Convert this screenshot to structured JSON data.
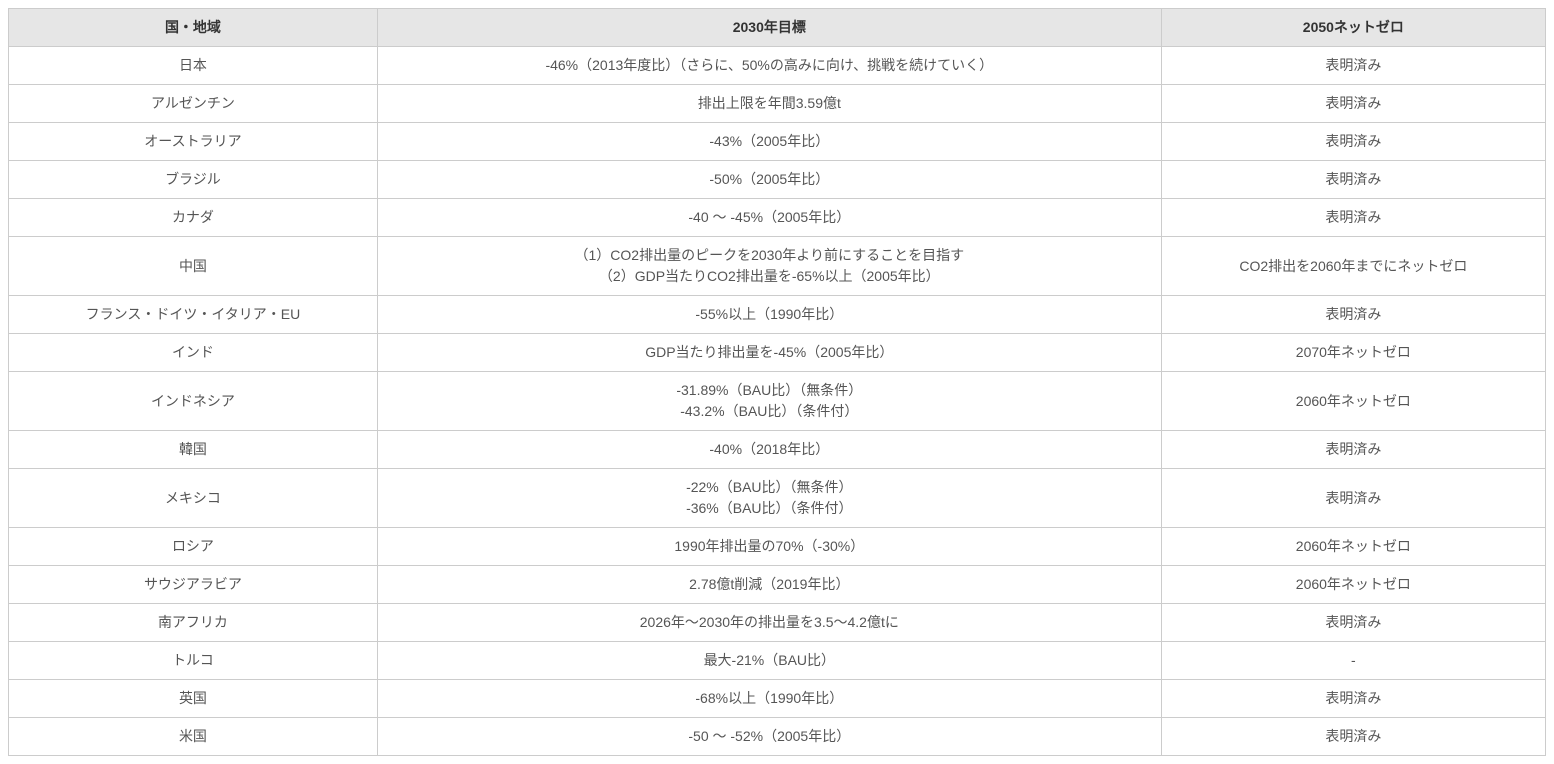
{
  "table": {
    "columns": [
      "国・地域",
      "2030年目標",
      "2050ネットゼロ"
    ],
    "rows": [
      {
        "region": "日本",
        "target": "-46%（2013年度比）（さらに、50%の高みに向け、挑戦を続けていく）",
        "netzero": "表明済み"
      },
      {
        "region": "アルゼンチン",
        "target": "排出上限を年間3.59億t",
        "netzero": "表明済み"
      },
      {
        "region": "オーストラリア",
        "target": "-43%（2005年比）",
        "netzero": "表明済み"
      },
      {
        "region": "ブラジル",
        "target": "-50%（2005年比）",
        "netzero": "表明済み"
      },
      {
        "region": "カナダ",
        "target": "-40 ～ -45%（2005年比）",
        "netzero": "表明済み"
      },
      {
        "region": "中国",
        "target": "（1）CO2排出量のピークを2030年より前にすることを目指す\n（2）GDP当たりCO2排出量を-65%以上（2005年比）",
        "netzero": "CO2排出を2060年までにネットゼロ"
      },
      {
        "region": "フランス・ドイツ・イタリア・EU",
        "target": "-55%以上（1990年比）",
        "netzero": "表明済み"
      },
      {
        "region": "インド",
        "target": "GDP当たり排出量を-45%（2005年比）",
        "netzero": "2070年ネットゼロ"
      },
      {
        "region": "インドネシア",
        "target": "-31.89%（BAU比）（無条件）\n-43.2%（BAU比）（条件付）",
        "netzero": "2060年ネットゼロ"
      },
      {
        "region": "韓国",
        "target": "-40%（2018年比）",
        "netzero": "表明済み"
      },
      {
        "region": "メキシコ",
        "target": "-22%（BAU比）（無条件）\n-36%（BAU比）（条件付）",
        "netzero": "表明済み"
      },
      {
        "region": "ロシア",
        "target": "1990年排出量の70%（-30%）",
        "netzero": "2060年ネットゼロ"
      },
      {
        "region": "サウジアラビア",
        "target": "2.78億t削減（2019年比）",
        "netzero": "2060年ネットゼロ"
      },
      {
        "region": "南アフリカ",
        "target": "2026年～2030年の排出量を3.5～4.2億tに",
        "netzero": "表明済み"
      },
      {
        "region": "トルコ",
        "target": "最大-21%（BAU比）",
        "netzero": "-"
      },
      {
        "region": "英国",
        "target": "-68%以上（1990年比）",
        "netzero": "表明済み"
      },
      {
        "region": "米国",
        "target": "-50 ～ -52%（2005年比）",
        "netzero": "表明済み"
      }
    ],
    "styling": {
      "header_bg": "#e6e6e6",
      "border_color": "#cccccc",
      "text_color": "#555555",
      "header_text_color": "#333333",
      "background_color": "#ffffff",
      "font_size": 14,
      "col_widths_pct": [
        24,
        51,
        25
      ],
      "alignment": "center"
    }
  }
}
